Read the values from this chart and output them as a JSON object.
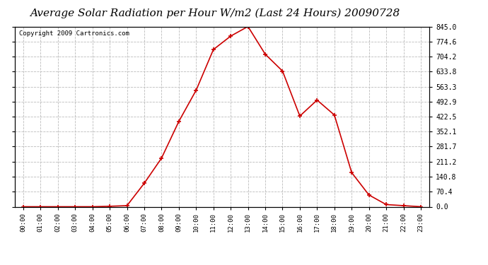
{
  "title": "Average Solar Radiation per Hour W/m2 (Last 24 Hours) 20090728",
  "copyright": "Copyright 2009 Cartronics.com",
  "hours": [
    "00:00",
    "01:00",
    "02:00",
    "03:00",
    "04:00",
    "05:00",
    "06:00",
    "07:00",
    "08:00",
    "09:00",
    "10:00",
    "11:00",
    "12:00",
    "13:00",
    "14:00",
    "15:00",
    "16:00",
    "17:00",
    "18:00",
    "19:00",
    "20:00",
    "21:00",
    "22:00",
    "23:00"
  ],
  "values": [
    0.0,
    0.0,
    0.0,
    0.0,
    0.0,
    2.0,
    5.0,
    110.0,
    228.0,
    400.0,
    546.0,
    737.0,
    800.0,
    845.0,
    715.0,
    636.0,
    425.0,
    500.0,
    430.0,
    160.0,
    55.0,
    10.0,
    5.0,
    0.0
  ],
  "line_color": "#cc0000",
  "marker_color": "#cc0000",
  "bg_color": "#ffffff",
  "plot_bg_color": "#ffffff",
  "grid_color": "#bbbbbb",
  "ylim": [
    0.0,
    845.0
  ],
  "yticks": [
    0.0,
    70.4,
    140.8,
    211.2,
    281.7,
    352.1,
    422.5,
    492.9,
    563.3,
    633.8,
    704.2,
    774.6,
    845.0
  ],
  "title_fontsize": 11,
  "copyright_fontsize": 6.5
}
